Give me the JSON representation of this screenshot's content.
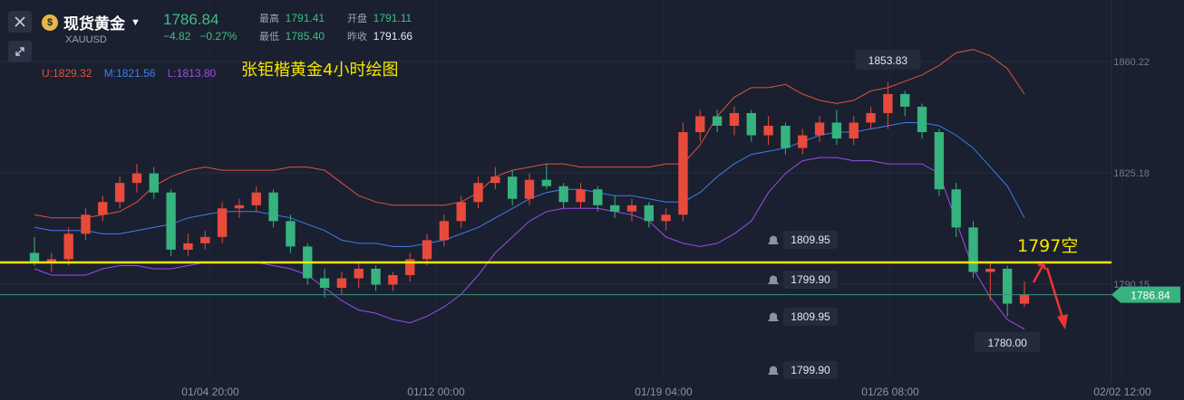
{
  "header": {
    "symbol_name": "现货黄金",
    "symbol_code": "XAUUSD",
    "last_price": "1786.84",
    "change": "−4.82",
    "change_pct": "−0.27%",
    "stats": [
      {
        "label": "最高",
        "value": "1791.41"
      },
      {
        "label": "开盘",
        "value": "1791.11"
      },
      {
        "label": "最低",
        "value": "1785.40"
      },
      {
        "label": "昨收",
        "value": "1791.66"
      }
    ]
  },
  "bollinger": {
    "upper_label": "U:1829.32",
    "mid_label": "M:1821.56",
    "lower_label": "L:1813.80"
  },
  "colors": {
    "background": "#1a2030",
    "up_candle": "#e84a3c",
    "down_candle": "#36b37e",
    "upper_band": "#e0523e",
    "mid_band": "#3f7ee8",
    "lower_band": "#9a4ee8",
    "annotation": "#f5e600"
  },
  "chart_data": {
    "type": "candlestick",
    "title": "张钜楷黄金4小时绘图",
    "y_axis": {
      "ticks": [
        "1860.22",
        "1825.18",
        "1790.15"
      ],
      "range": [
        1775,
        1870
      ]
    },
    "x_axis": {
      "ticks": [
        "01/04 20:00",
        "01/12 00:00",
        "01/19 04:00",
        "01/26 08:00",
        "02/02 12:00"
      ]
    },
    "current_price_label": "1786.84",
    "annotations": [
      {
        "text": "1797空",
        "price": 1797
      },
      {
        "text": "1853.83",
        "kind": "high-label"
      },
      {
        "text": "1780.00",
        "kind": "low-label"
      }
    ],
    "alerts": [
      "1809.95",
      "1799.90",
      "1809.95",
      "1799.90"
    ],
    "upper_band": [
      1812,
      1811,
      1811,
      1811,
      1812,
      1813,
      1816,
      1821,
      1824,
      1826,
      1827,
      1826,
      1826,
      1826,
      1826,
      1827,
      1827,
      1826,
      1822,
      1818,
      1816,
      1815,
      1815,
      1815,
      1815,
      1816,
      1819,
      1824,
      1826,
      1827,
      1828,
      1828,
      1827,
      1827,
      1827,
      1827,
      1827,
      1828,
      1828,
      1834,
      1843,
      1849,
      1852,
      1852,
      1853,
      1850,
      1848,
      1847,
      1848,
      1851,
      1852,
      1854,
      1856,
      1859,
      1863,
      1864,
      1862,
      1858,
      1850
    ],
    "mid_band": [
      1808,
      1807,
      1807,
      1807,
      1806,
      1806,
      1807,
      1808,
      1809,
      1811,
      1812,
      1813,
      1813,
      1813,
      1812,
      1811,
      1809,
      1807,
      1804,
      1803,
      1803,
      1802,
      1802,
      1803,
      1804,
      1806,
      1808,
      1811,
      1814,
      1817,
      1819,
      1820,
      1820,
      1819,
      1818,
      1818,
      1817,
      1816,
      1816,
      1819,
      1824,
      1828,
      1831,
      1832,
      1833,
      1835,
      1837,
      1838,
      1838,
      1839,
      1840,
      1841,
      1841,
      1840,
      1837,
      1833,
      1827,
      1821,
      1811
    ],
    "lower_band": [
      1795,
      1793,
      1793,
      1793,
      1795,
      1796,
      1796,
      1795,
      1795,
      1796,
      1797,
      1797,
      1797,
      1797,
      1796,
      1795,
      1793,
      1789,
      1785,
      1782,
      1781,
      1779,
      1778,
      1780,
      1783,
      1787,
      1793,
      1800,
      1805,
      1810,
      1813,
      1814,
      1814,
      1814,
      1813,
      1812,
      1810,
      1805,
      1803,
      1802,
      1803,
      1806,
      1810,
      1819,
      1825,
      1829,
      1830,
      1830,
      1829,
      1829,
      1828,
      1828,
      1828,
      1825,
      1810,
      1795,
      1786,
      1779,
      1776
    ],
    "candles": [
      {
        "o": 1800,
        "h": 1805,
        "l": 1796,
        "c": 1797
      },
      {
        "o": 1797,
        "h": 1800,
        "l": 1794,
        "c": 1798
      },
      {
        "o": 1798,
        "h": 1808,
        "l": 1796,
        "c": 1806
      },
      {
        "o": 1806,
        "h": 1814,
        "l": 1804,
        "c": 1812
      },
      {
        "o": 1812,
        "h": 1818,
        "l": 1810,
        "c": 1816
      },
      {
        "o": 1816,
        "h": 1824,
        "l": 1814,
        "c": 1822
      },
      {
        "o": 1822,
        "h": 1828,
        "l": 1819,
        "c": 1825
      },
      {
        "o": 1825,
        "h": 1827,
        "l": 1817,
        "c": 1819
      },
      {
        "o": 1819,
        "h": 1820,
        "l": 1799,
        "c": 1801
      },
      {
        "o": 1801,
        "h": 1806,
        "l": 1799,
        "c": 1803
      },
      {
        "o": 1803,
        "h": 1807,
        "l": 1801,
        "c": 1805
      },
      {
        "o": 1805,
        "h": 1816,
        "l": 1803,
        "c": 1814
      },
      {
        "o": 1814,
        "h": 1817,
        "l": 1811,
        "c": 1815
      },
      {
        "o": 1815,
        "h": 1821,
        "l": 1813,
        "c": 1819
      },
      {
        "o": 1819,
        "h": 1820,
        "l": 1808,
        "c": 1810
      },
      {
        "o": 1810,
        "h": 1812,
        "l": 1800,
        "c": 1802
      },
      {
        "o": 1802,
        "h": 1803,
        "l": 1790,
        "c": 1792
      },
      {
        "o": 1792,
        "h": 1795,
        "l": 1786,
        "c": 1789
      },
      {
        "o": 1789,
        "h": 1794,
        "l": 1787,
        "c": 1792
      },
      {
        "o": 1792,
        "h": 1797,
        "l": 1789,
        "c": 1795
      },
      {
        "o": 1795,
        "h": 1796,
        "l": 1788,
        "c": 1790
      },
      {
        "o": 1790,
        "h": 1794,
        "l": 1788,
        "c": 1793
      },
      {
        "o": 1793,
        "h": 1800,
        "l": 1791,
        "c": 1798
      },
      {
        "o": 1798,
        "h": 1806,
        "l": 1796,
        "c": 1804
      },
      {
        "o": 1804,
        "h": 1812,
        "l": 1802,
        "c": 1810
      },
      {
        "o": 1810,
        "h": 1818,
        "l": 1808,
        "c": 1816
      },
      {
        "o": 1816,
        "h": 1824,
        "l": 1814,
        "c": 1822
      },
      {
        "o": 1822,
        "h": 1827,
        "l": 1820,
        "c": 1824
      },
      {
        "o": 1824,
        "h": 1826,
        "l": 1815,
        "c": 1817
      },
      {
        "o": 1817,
        "h": 1825,
        "l": 1815,
        "c": 1823
      },
      {
        "o": 1823,
        "h": 1828,
        "l": 1820,
        "c": 1821
      },
      {
        "o": 1821,
        "h": 1822,
        "l": 1814,
        "c": 1816
      },
      {
        "o": 1816,
        "h": 1822,
        "l": 1814,
        "c": 1820
      },
      {
        "o": 1820,
        "h": 1821,
        "l": 1813,
        "c": 1815
      },
      {
        "o": 1815,
        "h": 1818,
        "l": 1811,
        "c": 1813
      },
      {
        "o": 1813,
        "h": 1817,
        "l": 1810,
        "c": 1815
      },
      {
        "o": 1815,
        "h": 1816,
        "l": 1808,
        "c": 1810
      },
      {
        "o": 1810,
        "h": 1814,
        "l": 1807,
        "c": 1812
      },
      {
        "o": 1812,
        "h": 1841,
        "l": 1810,
        "c": 1838
      },
      {
        "o": 1838,
        "h": 1845,
        "l": 1835,
        "c": 1843
      },
      {
        "o": 1843,
        "h": 1845,
        "l": 1838,
        "c": 1840
      },
      {
        "o": 1840,
        "h": 1846,
        "l": 1837,
        "c": 1844
      },
      {
        "o": 1844,
        "h": 1845,
        "l": 1835,
        "c": 1837
      },
      {
        "o": 1837,
        "h": 1843,
        "l": 1834,
        "c": 1840
      },
      {
        "o": 1840,
        "h": 1841,
        "l": 1831,
        "c": 1833
      },
      {
        "o": 1833,
        "h": 1839,
        "l": 1831,
        "c": 1837
      },
      {
        "o": 1837,
        "h": 1843,
        "l": 1835,
        "c": 1841
      },
      {
        "o": 1841,
        "h": 1845,
        "l": 1834,
        "c": 1836
      },
      {
        "o": 1836,
        "h": 1843,
        "l": 1834,
        "c": 1841
      },
      {
        "o": 1841,
        "h": 1846,
        "l": 1839,
        "c": 1844
      },
      {
        "o": 1844,
        "h": 1853.83,
        "l": 1839,
        "c": 1850
      },
      {
        "o": 1850,
        "h": 1851,
        "l": 1843,
        "c": 1846
      },
      {
        "o": 1846,
        "h": 1847,
        "l": 1836,
        "c": 1838
      },
      {
        "o": 1838,
        "h": 1839,
        "l": 1818,
        "c": 1820
      },
      {
        "o": 1820,
        "h": 1822,
        "l": 1805,
        "c": 1808
      },
      {
        "o": 1808,
        "h": 1810,
        "l": 1792,
        "c": 1794
      },
      {
        "o": 1794,
        "h": 1797,
        "l": 1785,
        "c": 1795
      },
      {
        "o": 1795,
        "h": 1796,
        "l": 1780,
        "c": 1784
      },
      {
        "o": 1784,
        "h": 1791,
        "l": 1783,
        "c": 1786.84
      }
    ]
  }
}
